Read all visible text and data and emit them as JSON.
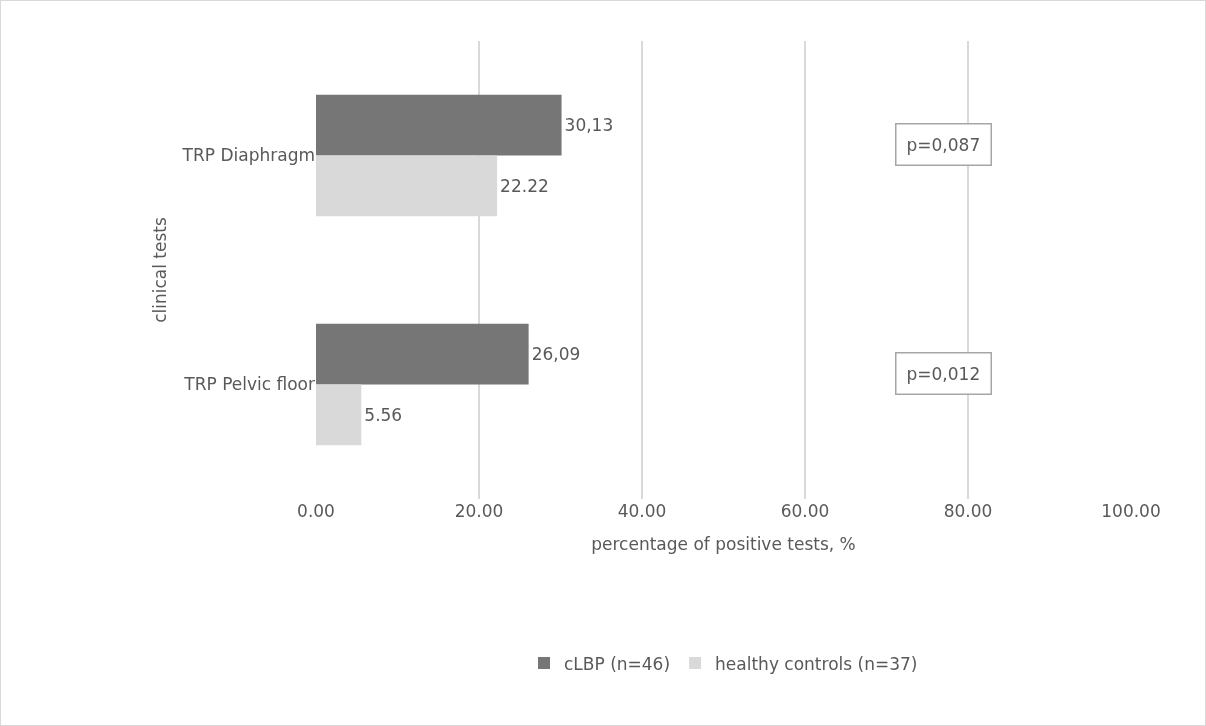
{
  "chart_data": {
    "type": "bar",
    "orientation": "horizontal",
    "xlabel": "percentage of positive tests, %",
    "ylabel": "clinical tests",
    "categories": [
      "TRP Diaphragm",
      "TRP Pelvic floor"
    ],
    "series": [
      {
        "name": "cLBP (n=46)",
        "color": "#767676",
        "values": [
          30.13,
          26.09
        ],
        "value_labels": [
          "30,13",
          "26,09"
        ]
      },
      {
        "name": "healthy controls (n=37)",
        "color": "#d9d9d9",
        "values": [
          22.22,
          5.56
        ],
        "value_labels": [
          "22.22",
          "5.56"
        ]
      }
    ],
    "xlim": [
      0,
      100
    ],
    "xticks": [
      {
        "value": 0,
        "label": "0.00"
      },
      {
        "value": 20,
        "label": "20.00"
      },
      {
        "value": 40,
        "label": "40.00"
      },
      {
        "value": 60,
        "label": "60.00"
      },
      {
        "value": 80,
        "label": "80.00"
      },
      {
        "value": 100,
        "label": "100.00"
      }
    ],
    "grid": "x",
    "legend": "bottom",
    "annotations": [
      "p=0,087",
      "p=0,012"
    ]
  }
}
